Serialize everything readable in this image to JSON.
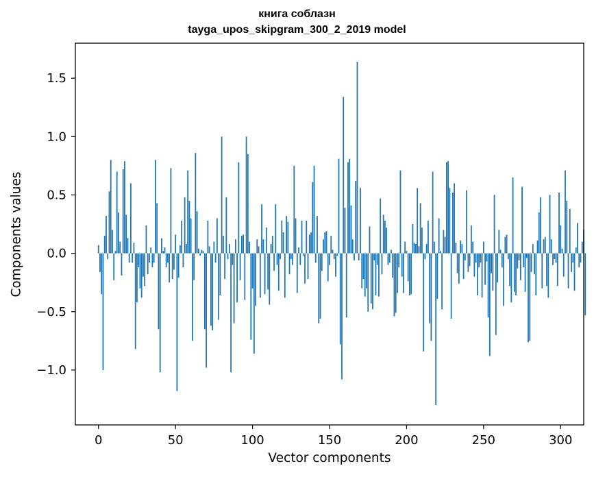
{
  "chart_data": {
    "type": "bar",
    "title": "книга соблазн",
    "subtitle": "tayga_upos_skipgram_300_2_2019 model",
    "xlabel": "Vector components",
    "ylabel": "Components values",
    "xlim": [
      -15,
      315
    ],
    "ylim": [
      -1.47,
      1.8
    ],
    "xticks": [
      0,
      50,
      100,
      150,
      200,
      250,
      300
    ],
    "yticks": [
      -1.0,
      -0.5,
      0.0,
      0.5,
      1.0,
      1.5
    ],
    "ytick_labels": [
      "−1.0",
      "−0.5",
      "0.0",
      "0.5",
      "1.0",
      "1.5"
    ],
    "bar_color": "#1f77b4",
    "grid": false,
    "series": [
      {
        "values": [
          0.07,
          -0.16,
          -0.35,
          -1.0,
          0.15,
          0.32,
          -0.05,
          0.53,
          0.8,
          0.2,
          -0.23,
          0.02,
          0.7,
          0.35,
          0.1,
          -0.19,
          0.72,
          0.79,
          0.33,
          0.13,
          -0.08,
          0.6,
          -0.08,
          0.09,
          -0.82,
          -0.42,
          -0.12,
          -0.3,
          -0.38,
          -0.2,
          -0.28,
          0.24,
          -0.18,
          -0.08,
          0.05,
          -0.12,
          -0.08,
          0.8,
          0.43,
          -0.65,
          -1.02,
          0.13,
          0.02,
          0.05,
          -0.12,
          -0.08,
          -0.25,
          0.73,
          -0.22,
          -0.14,
          0.16,
          -1.18,
          -0.21,
          0.07,
          0.28,
          -0.12,
          0.48,
          0.08,
          0.71,
          0.45,
          0.3,
          -0.75,
          -0.23,
          0.86,
          0.36,
          0.04,
          -0.02,
          0.03,
          0.02,
          -0.65,
          -0.98,
          0.28,
          0.06,
          -0.62,
          -0.66,
          0.1,
          -0.08,
          0.3,
          -0.57,
          -0.36,
          1.0,
          0.15,
          -0.22,
          0.48,
          -0.05,
          0.08,
          -1.02,
          -0.1,
          -0.6,
          0.12,
          -0.42,
          0.78,
          -0.23,
          0.15,
          0.16,
          -0.4,
          1.0,
          0.85,
          0.1,
          -0.74,
          -0.3,
          -0.86,
          -0.45,
          0.12,
          0.06,
          -0.38,
          0.42,
          0.12,
          -0.35,
          0.22,
          -0.31,
          -0.44,
          0.08,
          0.15,
          -0.15,
          0.42,
          -0.1,
          -0.32,
          -0.05,
          0.28,
          0.18,
          -0.38,
          0.32,
          0.27,
          -0.18,
          -0.05,
          -0.1,
          0.75,
          0.3,
          -0.34,
          0.05,
          -0.1,
          0.28,
          -0.02,
          -0.26,
          0.28,
          -0.22,
          0.16,
          0.18,
          0.61,
          0.75,
          -0.08,
          0.32,
          -0.6,
          -0.56,
          -0.15,
          0.12,
          0.18,
          0.19,
          -0.24,
          -0.1,
          0.15,
          0.03,
          -0.05,
          -0.2,
          -0.02,
          0.81,
          -0.78,
          -1.08,
          1.34,
          0.39,
          -0.55,
          0.78,
          0.81,
          0.41,
          0.12,
          -0.06,
          0.62,
          1.64,
          -0.06,
          0.56,
          -0.3,
          -0.22,
          -0.37,
          -0.3,
          -0.5,
          0.23,
          -0.43,
          -0.48,
          -0.06,
          -0.36,
          -0.1,
          -0.37,
          0.47,
          -0.18,
          0.33,
          0.28,
          0.22,
          -0.1,
          -0.08,
          0.03,
          -0.21,
          -0.54,
          -0.51,
          -0.34,
          -0.12,
          0.71,
          -0.2,
          -0.34,
          0.1,
          0.02,
          -0.24,
          -0.36,
          -0.35,
          0.25,
          0.09,
          0.08,
          0.56,
          0.06,
          0.43,
          0.22,
          -0.84,
          -0.05,
          0.08,
          0.28,
          -0.6,
          -0.75,
          0.7,
          0.1,
          -1.3,
          -0.39,
          0.3,
          0.02,
          -0.48,
          0.2,
          0.14,
          0.78,
          0.79,
          0.56,
          -0.56,
          0.52,
          0.6,
          0.09,
          -0.17,
          -0.26,
          0.11,
          0.08,
          -0.22,
          -0.06,
          0.54,
          -0.16,
          -0.11,
          0.24,
          0.1,
          -0.2,
          -0.08,
          -0.36,
          -0.12,
          -0.08,
          -0.38,
          0.1,
          -0.27,
          -0.07,
          -0.55,
          -0.88,
          -0.17,
          -0.32,
          0.5,
          -0.7,
          -0.25,
          0.2,
          0.03,
          -0.12,
          -0.45,
          0.14,
          0.16,
          -0.05,
          -0.28,
          -0.42,
          0.65,
          -0.33,
          -0.36,
          -0.13,
          -0.06,
          -0.23,
          0.57,
          -0.12,
          -0.33,
          -0.04,
          -0.76,
          -0.75,
          -0.16,
          0.08,
          -0.18,
          -0.36,
          0.11,
          0.35,
          0.48,
          -0.3,
          0.12,
          0.14,
          -0.28,
          -0.38,
          0.5,
          0.12,
          -0.1,
          -0.05,
          -0.08,
          -0.28,
          0.52,
          0.24,
          0.04,
          -0.2,
          0.71,
          0.45,
          -0.3,
          0.38,
          -0.16,
          -0.08,
          -0.32,
          0.05,
          0.26,
          -0.12,
          -0.08,
          0.1,
          0.2,
          -0.53
        ]
      }
    ]
  }
}
